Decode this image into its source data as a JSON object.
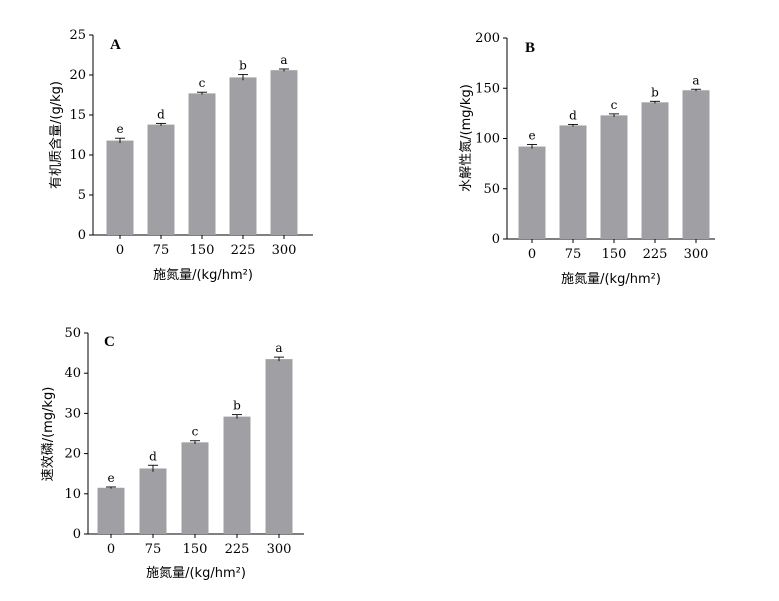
{
  "chart_data": [
    {
      "type": "bar",
      "panel_label": "A",
      "categories": [
        "0",
        "75",
        "150",
        "225",
        "300"
      ],
      "values": [
        11.8,
        13.8,
        17.7,
        19.7,
        20.6
      ],
      "errors": [
        0.3,
        0.15,
        0.15,
        0.35,
        0.15
      ],
      "significance": [
        "e",
        "d",
        "c",
        "b",
        "a"
      ],
      "ylabel": "有机质含量/(g/kg)",
      "xlabel": "施氮量/(kg/hm²)",
      "ylim": [
        0,
        25
      ],
      "yticks": [
        "0",
        "5",
        "10",
        "15",
        "20",
        "25"
      ],
      "grid": false
    },
    {
      "type": "bar",
      "panel_label": "B",
      "categories": [
        "0",
        "75",
        "150",
        "225",
        "300"
      ],
      "values": [
        92,
        113,
        123,
        136,
        148
      ],
      "errors": [
        2,
        1,
        1.5,
        1,
        1
      ],
      "significance": [
        "e",
        "d",
        "c",
        "b",
        "a"
      ],
      "ylabel": "水解性氮/(mg/kg)",
      "xlabel": "施氮量/(kg/hm²)",
      "ylim": [
        0,
        200
      ],
      "yticks": [
        "0",
        "50",
        "100",
        "150",
        "200"
      ],
      "grid": false
    },
    {
      "type": "bar",
      "panel_label": "C",
      "categories": [
        "0",
        "75",
        "150",
        "225",
        "300"
      ],
      "values": [
        11.5,
        16.3,
        22.8,
        29.2,
        43.5
      ],
      "errors": [
        0.2,
        0.8,
        0.4,
        0.5,
        0.5
      ],
      "significance": [
        "e",
        "d",
        "c",
        "b",
        "a"
      ],
      "ylabel": "速效磷/(mg/kg)",
      "xlabel": "施氮量/(kg/hm²)",
      "ylim": [
        0,
        50
      ],
      "yticks": [
        "0",
        "10",
        "20",
        "30",
        "40",
        "50"
      ],
      "grid": false
    }
  ]
}
